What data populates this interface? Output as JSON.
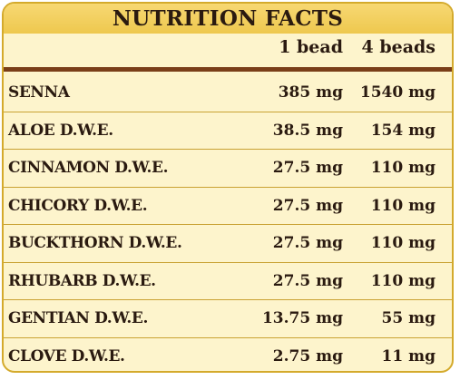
{
  "title": "NUTRITION FACTS",
  "columns": [
    "1 bead",
    "4 beads"
  ],
  "rows": [
    {
      "name": "SENNA",
      "one": "385 mg",
      "four": "1540 mg"
    },
    {
      "name": "ALOE D.W.E.",
      "one": "38.5 mg",
      "four": "154 mg"
    },
    {
      "name": "CINNAMON D.W.E.",
      "one": "27.5 mg",
      "four": "110 mg"
    },
    {
      "name": "CHICORY D.W.E.",
      "one": "27.5 mg",
      "four": "110 mg"
    },
    {
      "name": "BUCKTHORN D.W.E.",
      "one": "27.5 mg",
      "four": "110 mg"
    },
    {
      "name": "RHUBARB D.W.E.",
      "one": "27.5 mg",
      "four": "110 mg"
    },
    {
      "name": "GENTIAN D.W.E.",
      "one": "13.75 mg",
      "four": "55 mg"
    },
    {
      "name": "CLOVE D.W.E.",
      "one": "2.75 mg",
      "four": "11 mg"
    }
  ],
  "colors": {
    "border": "#d4aa2c",
    "header": "#eec84e",
    "background": "#fdf4cc",
    "rule": "#7a3e18",
    "text": "#2a1a10"
  }
}
